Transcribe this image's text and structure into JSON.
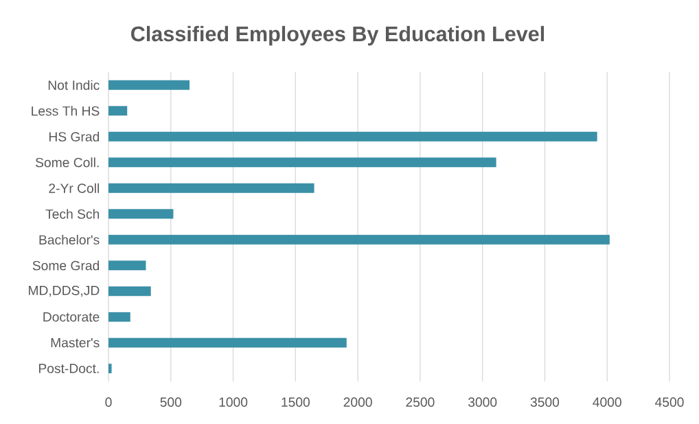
{
  "chart_data": {
    "type": "bar",
    "orientation": "horizontal",
    "title": "Classified Employees By Education Level",
    "categories": [
      "Not Indic",
      "Less Th HS",
      "HS Grad",
      "Some Coll.",
      "2-Yr Coll",
      "Tech Sch",
      "Bachelor's",
      "Some Grad",
      "MD,DDS,JD",
      "Doctorate",
      "Master's",
      "Post-Doct."
    ],
    "values": [
      650,
      150,
      3920,
      3110,
      1650,
      520,
      4020,
      300,
      340,
      175,
      1910,
      25
    ],
    "color": "#3a90a6",
    "xlim": [
      0,
      4500
    ],
    "xticks": [
      0,
      500,
      1000,
      1500,
      2000,
      2500,
      3000,
      3500,
      4000,
      4500
    ],
    "grid": "x"
  }
}
